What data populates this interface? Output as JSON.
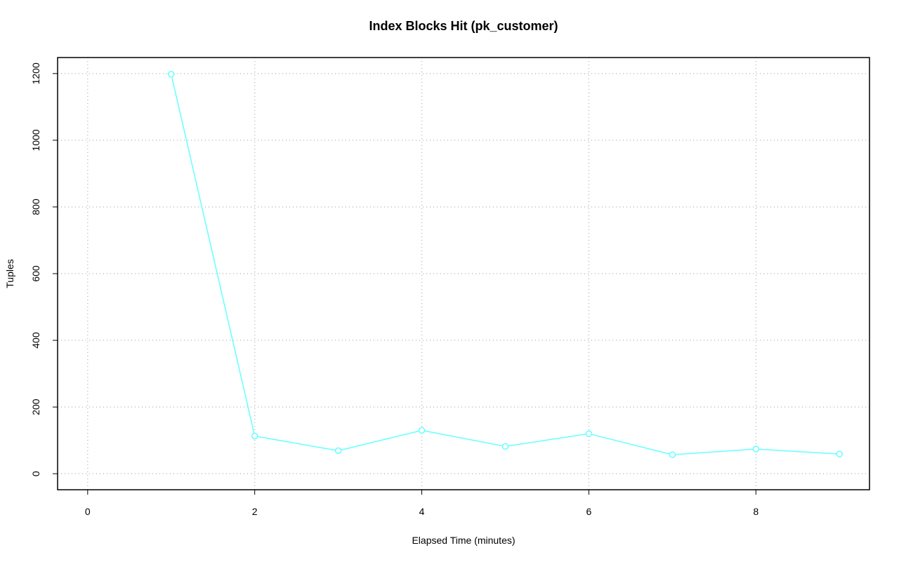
{
  "chart_data": {
    "type": "line",
    "title": "Index Blocks Hit (pk_customer)",
    "x_label": "Elapsed Time (minutes)",
    "y_label": "Tuples",
    "x": [
      1,
      2,
      3,
      4,
      5,
      6,
      7,
      8,
      9
    ],
    "series": [
      {
        "name": "pk_customer",
        "color": "#66ffff",
        "values": [
          1198,
          113,
          69,
          130,
          82,
          120,
          57,
          74,
          59
        ]
      }
    ],
    "xlim": [
      -0.36,
      9.36
    ],
    "xticks": [
      0,
      2,
      4,
      6,
      8
    ],
    "ylim": [
      -48,
      1248
    ],
    "yticks": [
      0,
      200,
      400,
      600,
      800,
      1000,
      1200
    ],
    "grid": true,
    "markers": true
  }
}
